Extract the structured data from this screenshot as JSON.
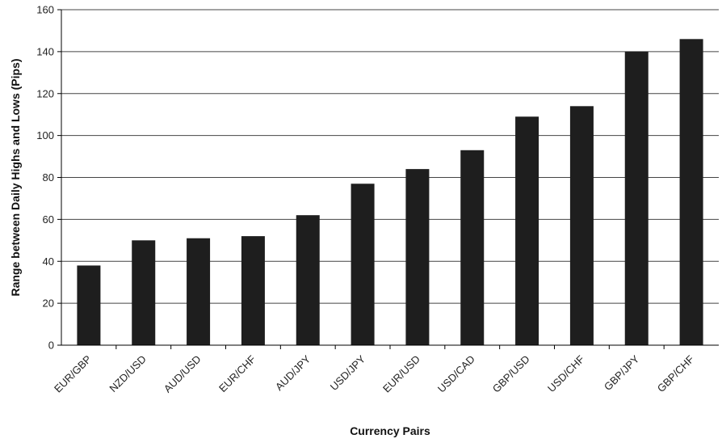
{
  "chart_data": {
    "type": "bar",
    "title": "",
    "xlabel": "Currency Pairs",
    "ylabel": "Range between Daily Highs and Lows (Pips)",
    "categories": [
      "EUR/GBP",
      "NZD/USD",
      "AUD/USD",
      "EUR/CHF",
      "AUD/JPY",
      "USD/JPY",
      "EUR/USD",
      "USD/CAD",
      "GBP/USD",
      "USD/CHF",
      "GBP/JPY",
      "GBP/CHF"
    ],
    "values": [
      38,
      50,
      51,
      52,
      62,
      77,
      84,
      93,
      109,
      114,
      140,
      146
    ],
    "ylim": [
      0,
      160
    ],
    "yticks": [
      0,
      20,
      40,
      60,
      80,
      100,
      120,
      140,
      160
    ],
    "grid": true,
    "legend": "none",
    "bar_color": "#1e1e1e"
  }
}
